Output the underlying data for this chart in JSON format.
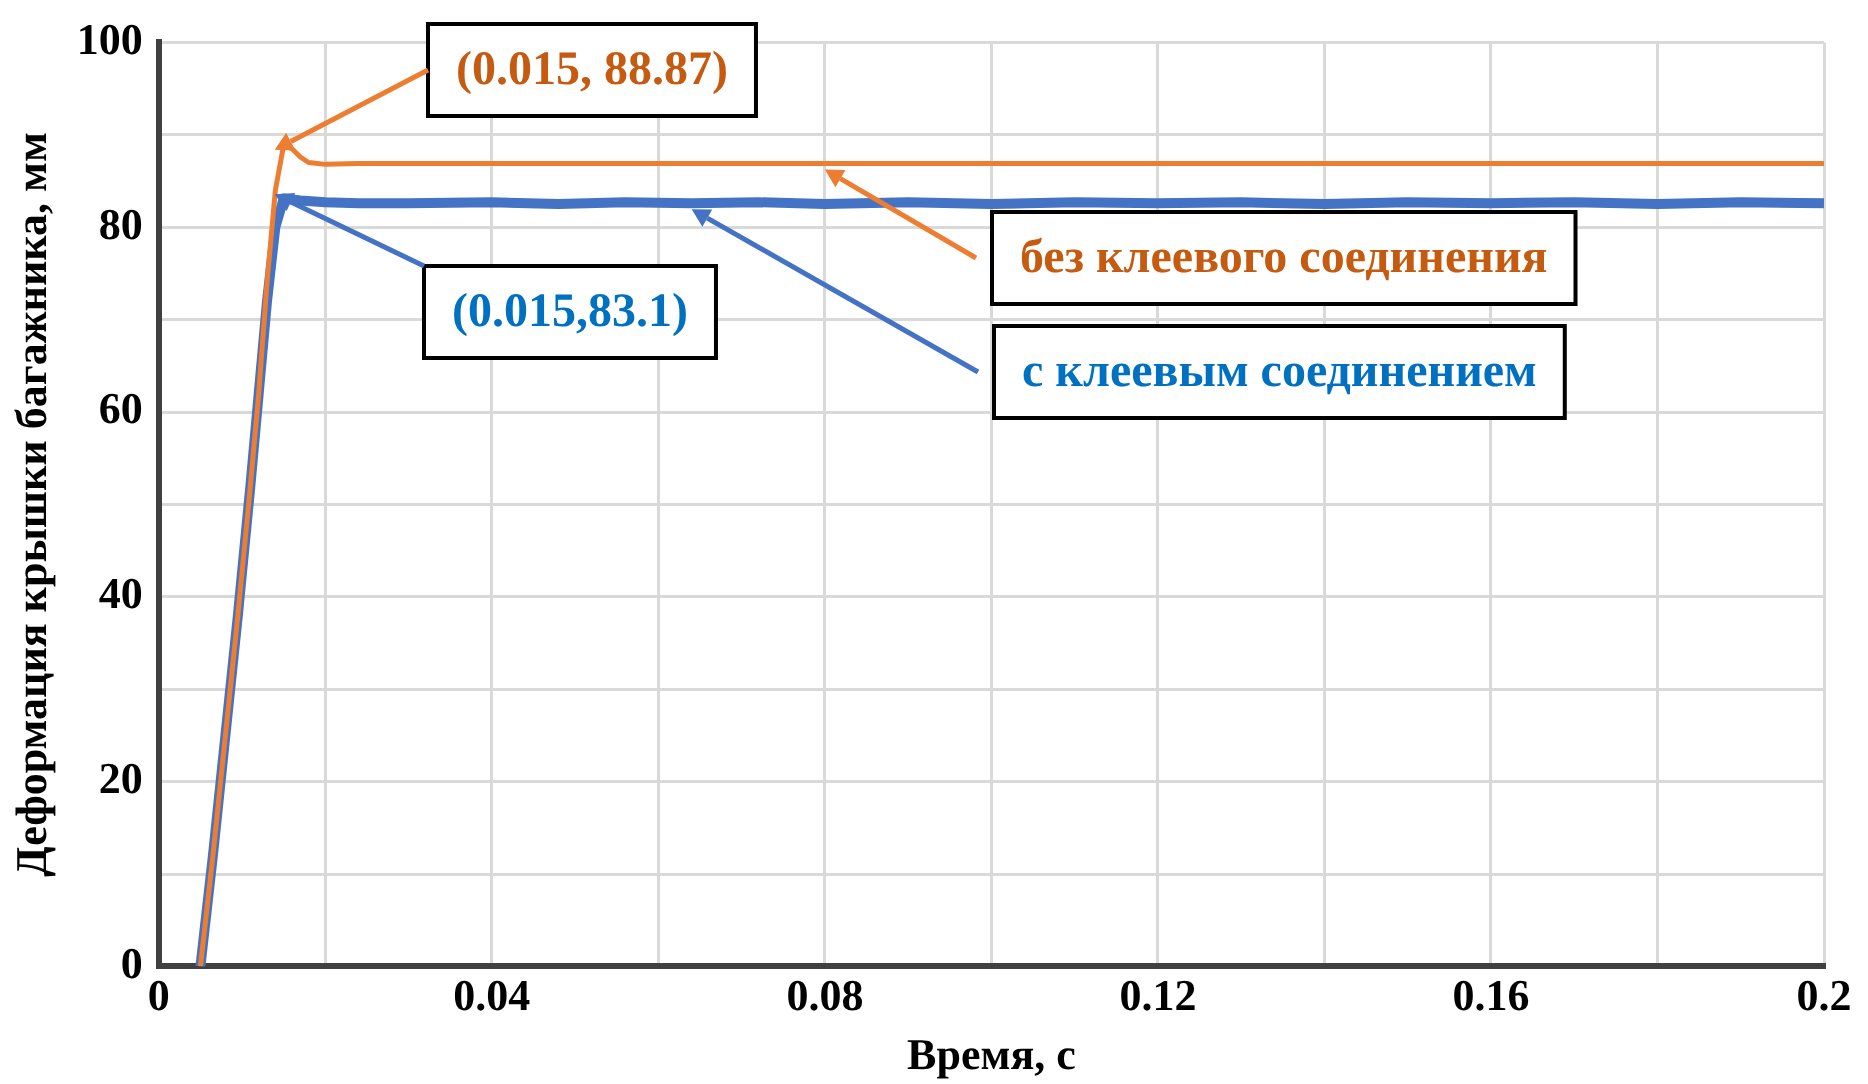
{
  "chart_data": {
    "type": "line",
    "xlabel": "Время, с",
    "ylabel": "Деформация крышки багажника, мм",
    "xlim": [
      0,
      0.2
    ],
    "xticks": [
      0,
      {
        "value": 0.02,
        "label": null
      },
      0.04,
      {
        "value": 0.06,
        "label": null
      },
      0.08,
      {
        "value": 0.1,
        "label": null
      },
      0.12,
      {
        "value": 0.14,
        "label": null
      },
      0.16,
      {
        "value": 0.18,
        "label": null
      },
      0.2
    ],
    "ylim": [
      0,
      100
    ],
    "yticks": [
      0,
      {
        "value": 10,
        "label": null
      },
      20,
      {
        "value": 30,
        "label": null
      },
      40,
      {
        "value": 50,
        "label": null
      },
      60,
      {
        "value": 70,
        "label": null
      },
      80,
      {
        "value": 90,
        "label": null
      },
      100
    ],
    "grid": true,
    "legend": false,
    "marker": "none",
    "line_style": "solid",
    "series": [
      {
        "name": "без клеевого соединения",
        "color": "#ed7d31",
        "x": [
          0.005,
          0.0065,
          0.008,
          0.0095,
          0.011,
          0.012,
          0.013,
          0.014,
          0.015,
          0.016,
          0.017,
          0.018,
          0.02,
          0.024,
          0.03,
          0.04,
          0.05,
          0.06,
          0.07,
          0.08,
          0.1,
          0.12,
          0.14,
          0.16,
          0.18,
          0.2
        ],
        "values": [
          0,
          12,
          25,
          38,
          52,
          62,
          74,
          84,
          88.9,
          88.5,
          87.6,
          87,
          86.8,
          86.9,
          86.9,
          86.9,
          86.9,
          86.9,
          86.9,
          86.9,
          86.9,
          86.9,
          86.9,
          86.9,
          86.9,
          86.9
        ]
      },
      {
        "name": "с клеевым соединением",
        "color": "#4472c4",
        "x": [
          0.005,
          0.0065,
          0.008,
          0.0095,
          0.011,
          0.012,
          0.013,
          0.014,
          0.015,
          0.017,
          0.02,
          0.024,
          0.03,
          0.04,
          0.048,
          0.056,
          0.064,
          0.072,
          0.08,
          0.09,
          0.1,
          0.11,
          0.12,
          0.13,
          0.14,
          0.15,
          0.16,
          0.17,
          0.18,
          0.19,
          0.2
        ],
        "values": [
          0,
          12,
          25,
          38,
          52,
          62,
          72,
          80,
          83.1,
          82.9,
          82.7,
          82.6,
          82.6,
          82.7,
          82.5,
          82.7,
          82.6,
          82.7,
          82.5,
          82.7,
          82.5,
          82.7,
          82.6,
          82.7,
          82.5,
          82.7,
          82.6,
          82.7,
          82.5,
          82.7,
          82.6
        ]
      }
    ],
    "annotations": [
      {
        "text": "(0.015, 88.87)",
        "x": 0.015,
        "y": 88.87
      },
      {
        "text": "(0.015,83.1)",
        "x": 0.015,
        "y": 83.1
      }
    ]
  }
}
